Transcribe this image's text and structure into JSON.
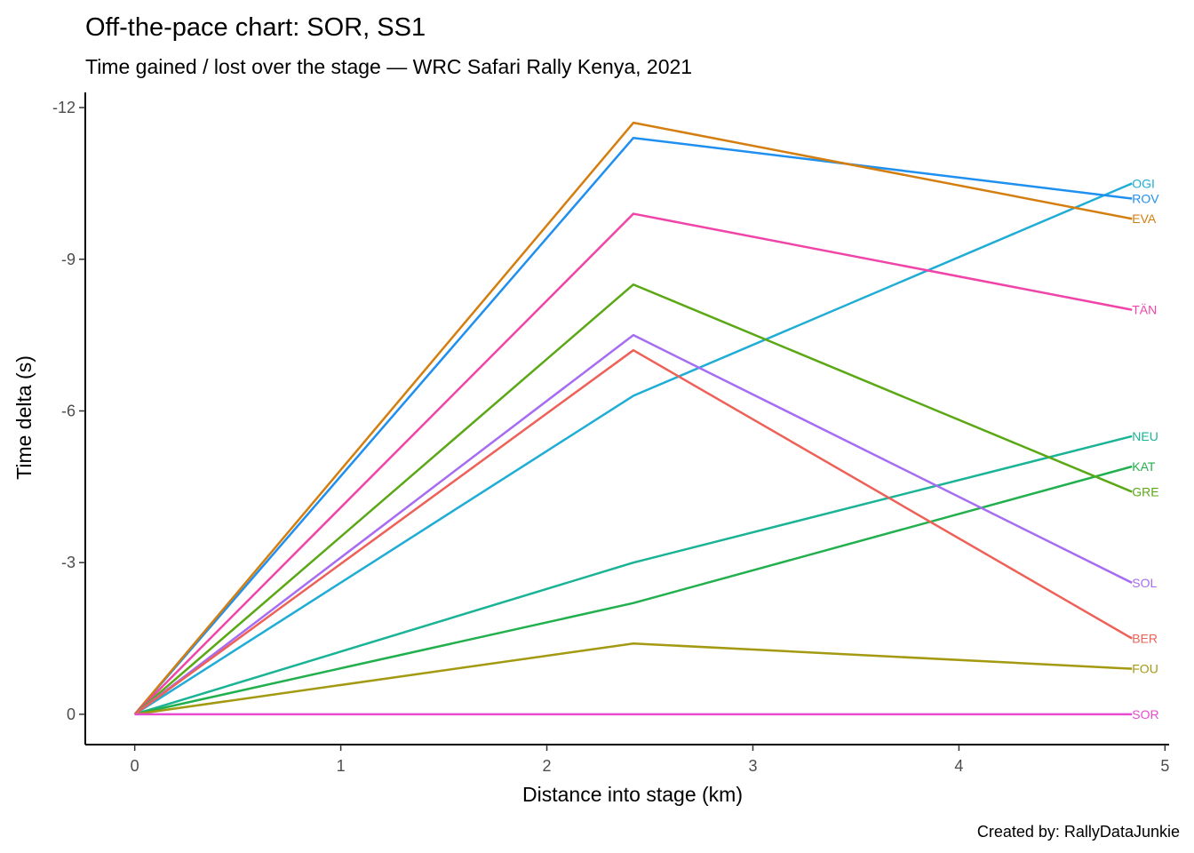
{
  "chart_data": {
    "type": "line",
    "title": "Off-the-pace chart: SOR, SS1",
    "subtitle": "Time gained / lost over the stage — WRC Safari Rally Kenya, 2021",
    "xlabel": "Distance into stage (km)",
    "ylabel": "Time delta (s)",
    "caption": "Created by: RallyDataJunkie",
    "xlim": [
      -0.24,
      5.02
    ],
    "ylim": [
      0.6,
      -12.3
    ],
    "y_reversed": true,
    "x_ticks": [
      0,
      1,
      2,
      3,
      4,
      5
    ],
    "x_tick_labels": [
      "0",
      "1",
      "2",
      "3",
      "4",
      "5"
    ],
    "y_ticks": [
      -12,
      -9,
      -6,
      -3,
      0
    ],
    "y_tick_labels": [
      "-12",
      "-9",
      "-6",
      "-3",
      "0"
    ],
    "grid": false,
    "legend": "none (direct end labels)",
    "x": [
      0,
      2.42,
      4.84
    ],
    "series": [
      {
        "name": "OGI",
        "color": "#1FADD6",
        "values": [
          0,
          -6.3,
          -10.5
        ]
      },
      {
        "name": "ROV",
        "color": "#1F8FF0",
        "values": [
          0,
          -11.4,
          -10.2
        ]
      },
      {
        "name": "EVA",
        "color": "#D47E10",
        "values": [
          0,
          -11.7,
          -9.8
        ]
      },
      {
        "name": "TÄN",
        "color": "#F044A8",
        "values": [
          0,
          -9.9,
          -8.0
        ]
      },
      {
        "name": "NEU",
        "color": "#1AB396",
        "values": [
          0,
          -3.0,
          -5.5
        ]
      },
      {
        "name": "KAT",
        "color": "#21B04D",
        "values": [
          0,
          -2.2,
          -4.9
        ]
      },
      {
        "name": "GRE",
        "color": "#5BA816",
        "values": [
          0,
          -8.5,
          -4.4
        ]
      },
      {
        "name": "SOL",
        "color": "#A66CF2",
        "values": [
          0,
          -7.5,
          -2.6
        ]
      },
      {
        "name": "BER",
        "color": "#EE6158",
        "values": [
          0,
          -7.2,
          -1.5
        ]
      },
      {
        "name": "FOU",
        "color": "#A39A12",
        "values": [
          0,
          -1.4,
          -0.9
        ]
      },
      {
        "name": "SOR",
        "color": "#E84ACF",
        "values": [
          0,
          0,
          0
        ]
      }
    ]
  }
}
